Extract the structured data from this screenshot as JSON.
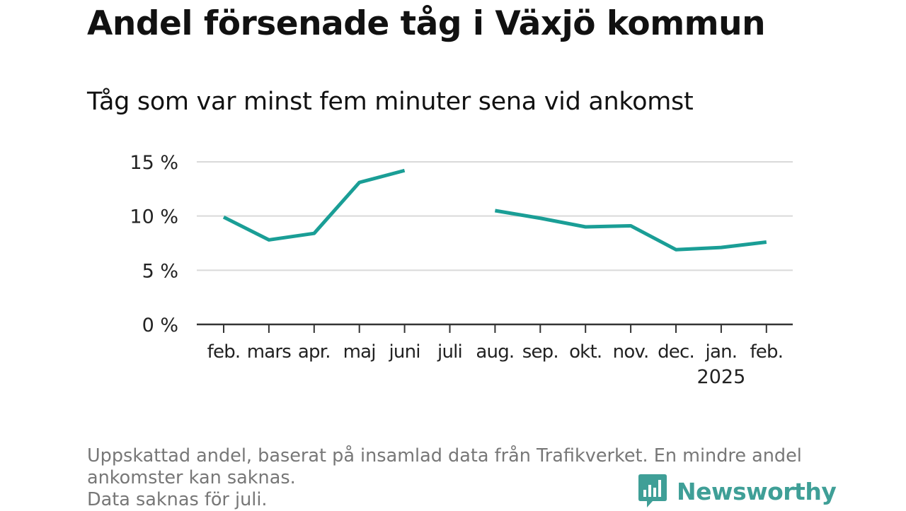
{
  "title": "Andel försenade tåg i Växjö kommun",
  "subtitle": "Tåg som var minst fem minuter sena vid ankomst",
  "footnote": [
    "Uppskattad andel, baserat på insamlad data från Trafikverket. En mindre andel",
    "ankomster kan saknas.",
    "Data saknas för juli."
  ],
  "brand": {
    "name": "Newsworthy",
    "color": "#3f9f97"
  },
  "chart_data": {
    "type": "line",
    "categories": [
      "feb.",
      "mars",
      "apr.",
      "maj",
      "juni",
      "juli",
      "aug.",
      "sep.",
      "okt.",
      "nov.",
      "dec.",
      "jan.",
      "feb."
    ],
    "category_sublabels": [
      "",
      "",
      "",
      "",
      "",
      "",
      "",
      "",
      "",
      "",
      "",
      "2025",
      ""
    ],
    "series": [
      {
        "values": [
          9.9,
          7.8,
          8.4,
          13.1,
          14.2,
          null,
          10.5,
          9.8,
          9.0,
          9.1,
          6.9,
          7.1,
          7.6
        ],
        "color": "#1a9e96"
      }
    ],
    "y_ticks": [
      0,
      5,
      10,
      15
    ],
    "y_tick_labels": [
      "0 %",
      "5 %",
      "10 %",
      "15 %"
    ],
    "ylim": [
      0,
      15
    ],
    "grid": true,
    "colors": {
      "grid": "#d9d9d9",
      "axis": "#333333",
      "line": "#1a9e96"
    }
  }
}
